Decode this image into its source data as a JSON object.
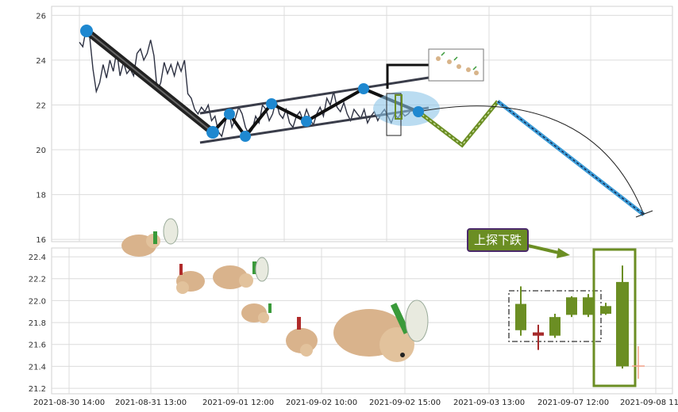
{
  "chart_data": [
    {
      "type": "line",
      "panel": "upper",
      "ylim": [
        15.9,
        26.4
      ],
      "yticks": [
        16,
        18,
        20,
        22,
        24,
        26
      ],
      "xlim": [
        0,
        100
      ],
      "series": [
        {
          "x": [
            0,
            1,
            2,
            3,
            4,
            5,
            6,
            7,
            8,
            9,
            10,
            11,
            12,
            13,
            14,
            15,
            16,
            17,
            18,
            19,
            20,
            21,
            22,
            23,
            24,
            25,
            26,
            27,
            28,
            29,
            30,
            31,
            32,
            33,
            34,
            35,
            36,
            37,
            38,
            39,
            40,
            41,
            42,
            43,
            44,
            45,
            46,
            47,
            48,
            49,
            50,
            51,
            52,
            53,
            54,
            55,
            56,
            57,
            58,
            59,
            60,
            61,
            62,
            63,
            64,
            65,
            66,
            67,
            68,
            69,
            70,
            71,
            72,
            73,
            74,
            75,
            76,
            77,
            78,
            79,
            80,
            81,
            82,
            83,
            84,
            85,
            86,
            87,
            88,
            89,
            90,
            91,
            92,
            93,
            94,
            95,
            96,
            97,
            98,
            99,
            100
          ],
          "values": [
            24.8,
            24.6,
            25.4,
            25.1,
            23.6,
            22.6,
            23.0,
            23.8,
            23.2,
            24.0,
            23.5,
            24.4,
            23.3,
            23.9,
            23.4,
            23.6,
            23.3,
            24.3,
            24.5,
            24.0,
            24.3,
            24.9,
            24.2,
            22.6,
            23.0,
            23.9,
            23.4,
            23.8,
            23.3,
            23.9,
            23.5,
            24.0,
            22.5,
            22.3,
            21.8,
            21.6,
            21.9,
            21.7,
            22.0,
            21.3,
            21.5,
            20.8,
            20.6,
            21.2,
            21.8,
            21.0,
            21.4,
            21.9,
            21.6,
            21.0,
            20.7,
            20.9,
            21.5,
            21.2,
            22.0,
            21.8,
            21.3,
            21.6,
            22.2,
            21.6,
            21.4,
            21.8,
            21.2,
            21.0,
            21.5,
            21.7,
            21.3,
            21.8,
            21.4,
            21.1,
            21.6,
            21.9,
            21.5,
            22.3,
            22.0,
            22.6,
            21.9,
            21.7,
            22.1,
            21.6,
            21.3,
            21.8,
            21.6,
            21.4,
            21.8,
            21.2,
            21.5,
            21.7,
            21.3,
            21.6,
            21.8,
            21.5,
            21.2,
            21.6,
            21.4,
            21.7,
            21.5,
            21.6,
            21.8,
            21.6,
            21.7
          ]
        }
      ]
    },
    {
      "type": "candlestick",
      "panel": "lower",
      "ylim": [
        21.15,
        22.48
      ],
      "yticks": [
        21.2,
        21.4,
        21.6,
        21.8,
        22.0,
        22.2,
        22.4
      ],
      "x_ticks": [
        "2021-08-30 14:00",
        "2021-08-31 13:00",
        "2021-09-01 12:00",
        "2021-09-02 10:00",
        "2021-09-02 15:00",
        "2021-09-03 13:00",
        "2021-09-07 12:00",
        "2021-09-08 11:00"
      ],
      "candles": [
        {
          "open": 21.73,
          "high": 22.13,
          "low": 21.68,
          "close": 21.97
        },
        {
          "open": 21.71,
          "high": 21.78,
          "low": 21.55,
          "close": 21.68
        },
        {
          "open": 21.68,
          "high": 21.88,
          "low": 21.66,
          "close": 21.85
        },
        {
          "open": 21.87,
          "high": 22.04,
          "low": 21.85,
          "close": 22.03
        },
        {
          "open": 21.87,
          "high": 22.06,
          "low": 21.85,
          "close": 22.03
        },
        {
          "open": 21.88,
          "high": 21.98,
          "low": 21.87,
          "close": 21.95
        },
        {
          "open": 21.4,
          "high": 22.32,
          "low": 21.38,
          "close": 22.17
        }
      ],
      "annotation": "上探下跌"
    }
  ]
}
